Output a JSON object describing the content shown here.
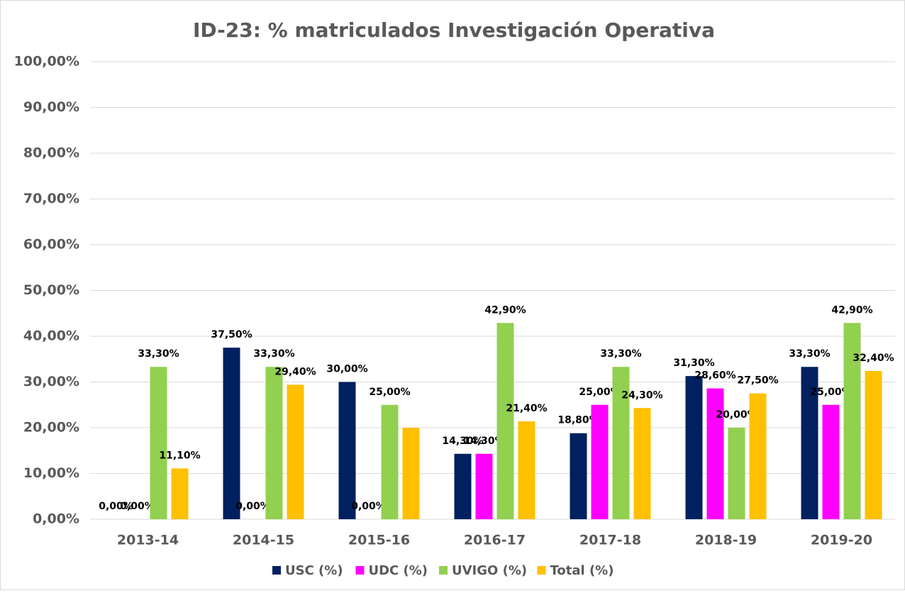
{
  "chart_data": {
    "type": "bar",
    "title": "ID-23: % matriculados Investigación Operativa",
    "categories": [
      "2013-14",
      "2014-15",
      "2015-16",
      "2016-17",
      "2017-18",
      "2018-19",
      "2019-20"
    ],
    "series": [
      {
        "name": "USC (%)",
        "color": "#002060",
        "values": [
          0,
          37.5,
          30,
          14.3,
          18.8,
          31.3,
          33.3
        ],
        "value_labels": [
          "0,00%",
          "37,50%",
          "30,00%",
          "14,30%",
          "18,80%",
          "31,30%",
          "33,30%"
        ]
      },
      {
        "name": "UDC (%)",
        "color": "#ff00ff",
        "values": [
          0,
          0,
          0,
          14.3,
          25,
          28.6,
          25
        ],
        "value_labels": [
          "0,00%",
          "0,00%",
          "0,00%",
          "14,30%",
          "25,00%",
          "28,60%",
          "25,00%"
        ]
      },
      {
        "name": "UVIGO (%)",
        "color": "#92d050",
        "values": [
          33.3,
          33.3,
          25,
          42.9,
          33.3,
          20,
          42.9
        ],
        "value_labels": [
          "33,30%",
          "33,30%",
          "25,00%",
          "42,90%",
          "33,30%",
          "20,00%",
          "42,90%"
        ]
      },
      {
        "name": "Total (%)",
        "color": "#ffc000",
        "values": [
          11.1,
          29.4,
          20,
          21.4,
          24.3,
          27.5,
          32.4
        ],
        "value_labels": [
          "11,10%",
          "29,40%",
          null,
          "21,40%",
          "24,30%",
          "27,50%",
          "32,40%"
        ]
      }
    ],
    "ylim": [
      0,
      100
    ],
    "yticks": [
      {
        "value": 0,
        "label": "0,00%"
      },
      {
        "value": 10,
        "label": "10,00%"
      },
      {
        "value": 20,
        "label": "20,00%"
      },
      {
        "value": 30,
        "label": "30,00%"
      },
      {
        "value": 40,
        "label": "40,00%"
      },
      {
        "value": 50,
        "label": "50,00%"
      },
      {
        "value": 60,
        "label": "60,00%"
      },
      {
        "value": 70,
        "label": "70,00%"
      },
      {
        "value": 80,
        "label": "80,00%"
      },
      {
        "value": 90,
        "label": "90,00%"
      },
      {
        "value": 100,
        "label": "100,00%"
      }
    ],
    "grid": true,
    "legend": "bottom"
  }
}
